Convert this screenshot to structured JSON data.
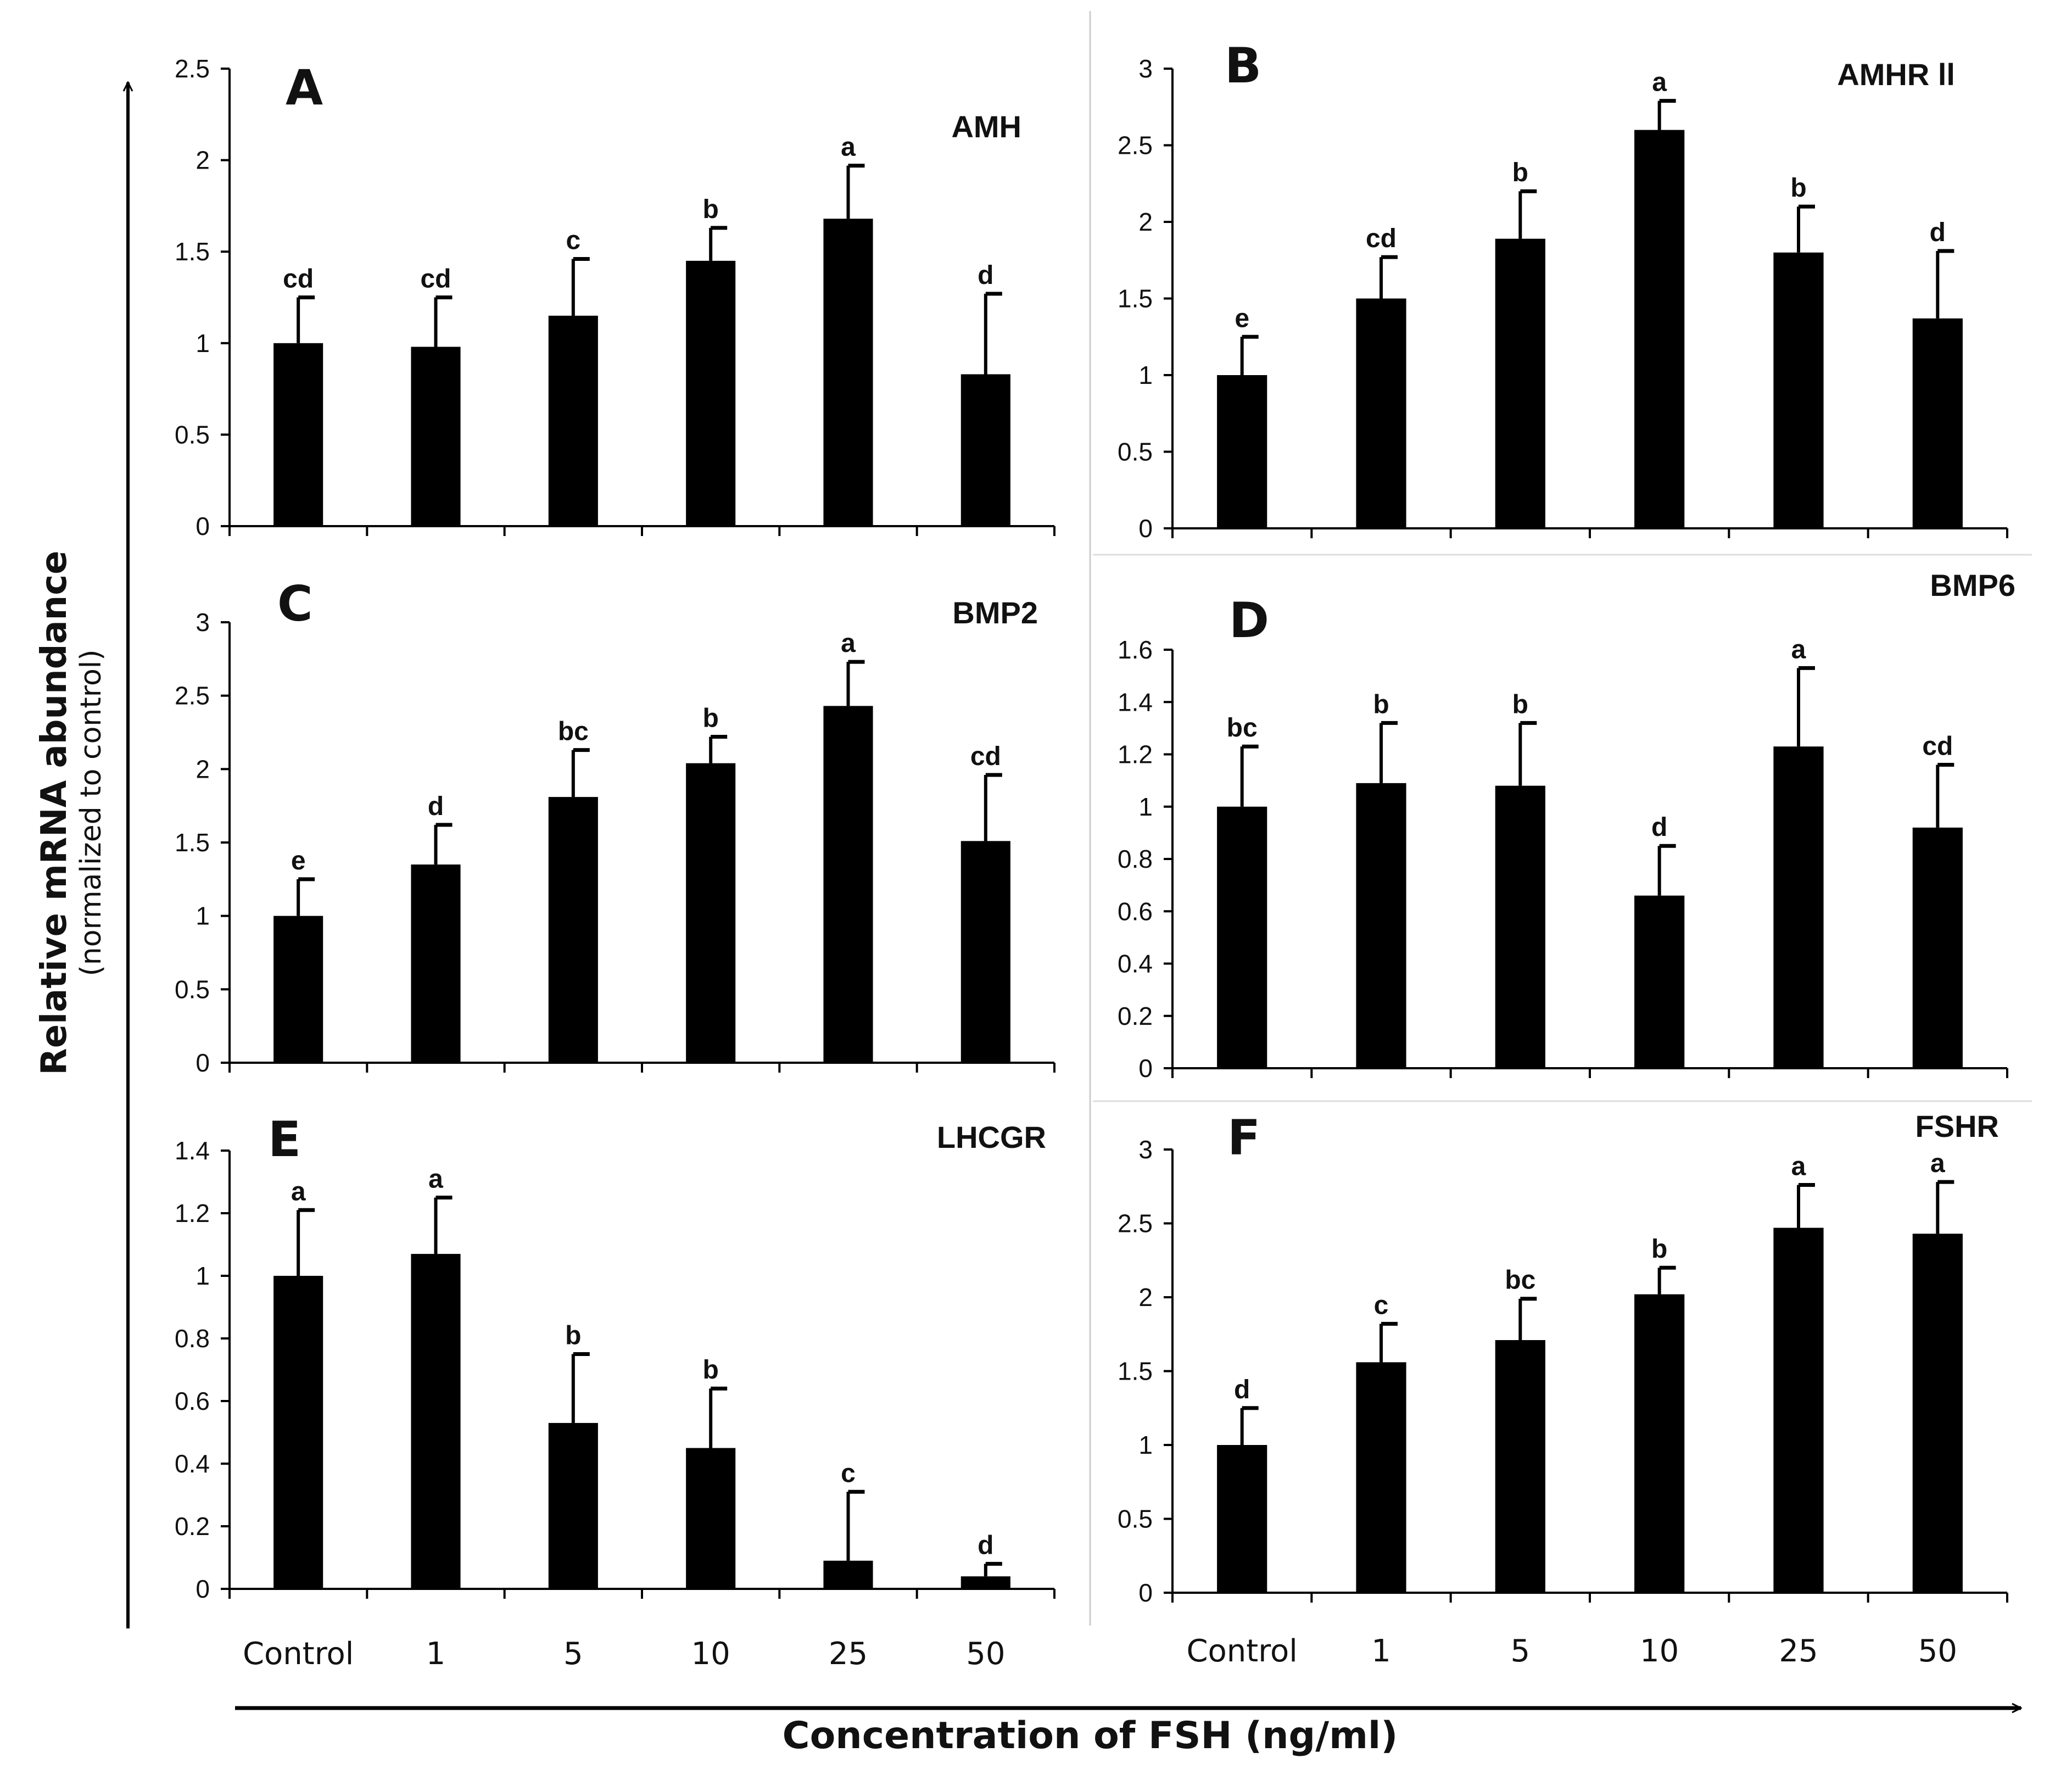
{
  "figure": {
    "ylabel": "Relative mRNA abundance",
    "ylabel_sub": "(normalized to control)",
    "xlabel": "Concentration of FSH (ng/ml)",
    "bar_color": "#000000"
  },
  "chart_data": [
    {
      "type": "bar",
      "panel": "A",
      "gene": "AMH",
      "categories": [
        "Control",
        "1",
        "5",
        "10",
        "25",
        "50"
      ],
      "values": [
        1.0,
        0.98,
        1.15,
        1.45,
        1.68,
        0.83
      ],
      "errors": [
        0.25,
        0.27,
        0.31,
        0.18,
        0.29,
        0.44
      ],
      "significance": [
        "cd",
        "cd",
        "c",
        "b",
        "a",
        "d"
      ],
      "ylim": [
        0,
        2.5
      ],
      "yticks": [
        "0",
        "0.5",
        "1",
        "1.5",
        "2",
        "2.5"
      ],
      "ytick_values": [
        0,
        0.5,
        1,
        1.5,
        2,
        2.5
      ]
    },
    {
      "type": "bar",
      "panel": "B",
      "gene": "AMHR ll",
      "categories": [
        "Control",
        "1",
        "5",
        "10",
        "25",
        "50"
      ],
      "values": [
        1.0,
        1.5,
        1.89,
        2.6,
        1.8,
        1.37
      ],
      "errors": [
        0.25,
        0.27,
        0.31,
        0.19,
        0.3,
        0.44
      ],
      "significance": [
        "e",
        "cd",
        "b",
        "a",
        "b",
        "d"
      ],
      "ylim": [
        0,
        3
      ],
      "yticks": [
        "0",
        "0.5",
        "1",
        "1.5",
        "2",
        "2.5",
        "3"
      ],
      "ytick_values": [
        0,
        0.5,
        1,
        1.5,
        2,
        2.5,
        3
      ]
    },
    {
      "type": "bar",
      "panel": "C",
      "gene": "BMP2",
      "categories": [
        "Control",
        "1",
        "5",
        "10",
        "25",
        "50"
      ],
      "values": [
        1.0,
        1.35,
        1.81,
        2.04,
        2.43,
        1.51
      ],
      "errors": [
        0.25,
        0.27,
        0.32,
        0.18,
        0.3,
        0.45
      ],
      "significance": [
        "e",
        "d",
        "bc",
        "b",
        "a",
        "cd"
      ],
      "ylim": [
        0,
        3
      ],
      "yticks": [
        "0",
        "0.5",
        "1",
        "1.5",
        "2",
        "2.5",
        "3"
      ],
      "ytick_values": [
        0,
        0.5,
        1,
        1.5,
        2,
        2.5,
        3
      ]
    },
    {
      "type": "bar",
      "panel": "D",
      "gene": "BMP6",
      "categories": [
        "Control",
        "1",
        "5",
        "10",
        "25",
        "50"
      ],
      "values": [
        1.0,
        1.09,
        1.08,
        0.66,
        1.23,
        0.92
      ],
      "errors": [
        0.23,
        0.23,
        0.24,
        0.19,
        0.3,
        0.24
      ],
      "significance": [
        "bc",
        "b",
        "b",
        "d",
        "a",
        "cd"
      ],
      "ylim": [
        0,
        1.6
      ],
      "yticks": [
        "0",
        "0.2",
        "0.4",
        "0.6",
        "0.8",
        "1",
        "1.2",
        "1.4",
        "1.6"
      ],
      "ytick_values": [
        0,
        0.2,
        0.4,
        0.6,
        0.8,
        1,
        1.2,
        1.4,
        1.6
      ]
    },
    {
      "type": "bar",
      "panel": "E",
      "gene": "LHCGR",
      "categories": [
        "Control",
        "1",
        "5",
        "10",
        "25",
        "50"
      ],
      "values": [
        1.0,
        1.07,
        0.53,
        0.45,
        0.09,
        0.04
      ],
      "errors": [
        0.21,
        0.18,
        0.22,
        0.19,
        0.22,
        0.04
      ],
      "significance": [
        "a",
        "a",
        "b",
        "b",
        "c",
        "d"
      ],
      "ylim": [
        0,
        1.4
      ],
      "yticks": [
        "0",
        "0.2",
        "0.4",
        "0.6",
        "0.8",
        "1",
        "1.2",
        "1.4"
      ],
      "ytick_values": [
        0,
        0.2,
        0.4,
        0.6,
        0.8,
        1,
        1.2,
        1.4
      ]
    },
    {
      "type": "bar",
      "panel": "F",
      "gene": "FSHR",
      "categories": [
        "Control",
        "1",
        "5",
        "10",
        "25",
        "50"
      ],
      "values": [
        1.0,
        1.56,
        1.71,
        2.02,
        2.47,
        2.43
      ],
      "errors": [
        0.25,
        0.26,
        0.28,
        0.18,
        0.29,
        0.35
      ],
      "significance": [
        "d",
        "c",
        "bc",
        "b",
        "a",
        "a"
      ],
      "ylim": [
        0,
        3
      ],
      "yticks": [
        "0",
        "0.5",
        "1",
        "1.5",
        "2",
        "2.5",
        "3"
      ],
      "ytick_values": [
        0,
        0.5,
        1,
        1.5,
        2,
        2.5,
        3
      ]
    }
  ]
}
